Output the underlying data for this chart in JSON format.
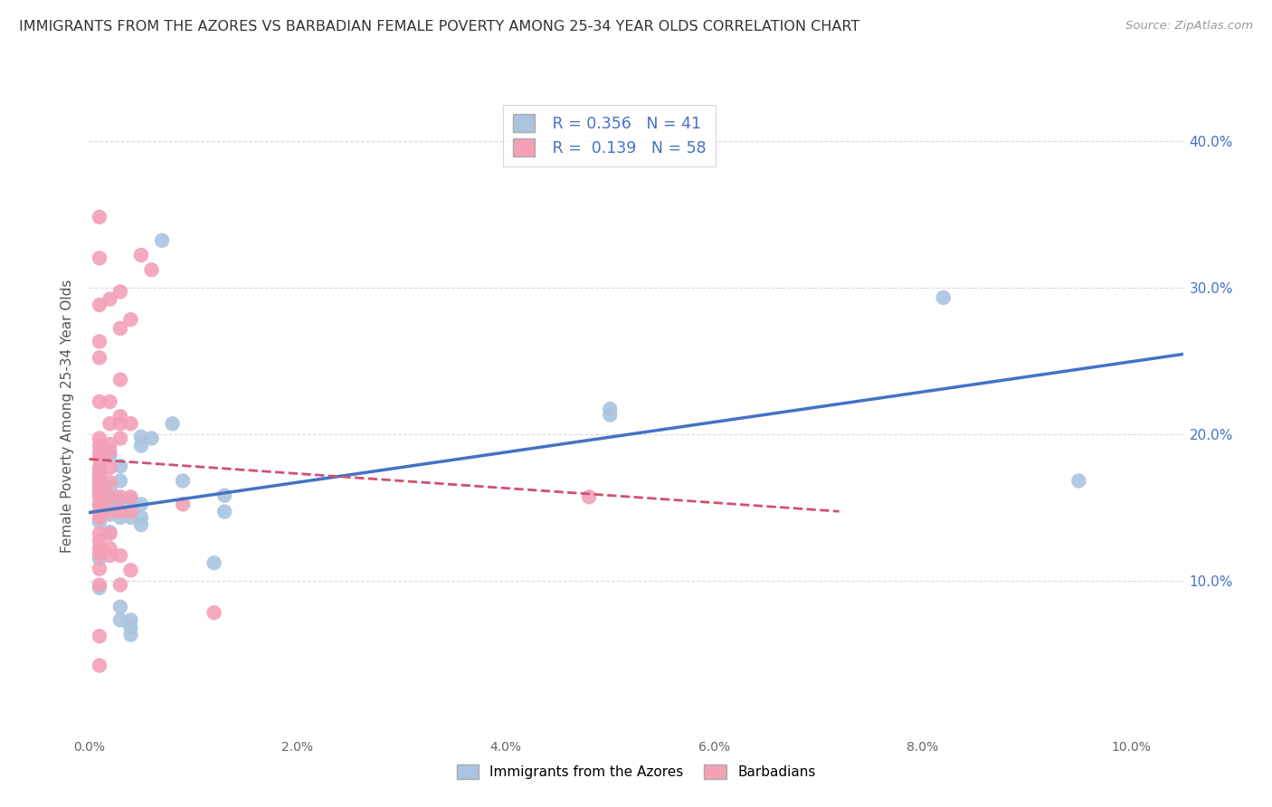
{
  "title": "IMMIGRANTS FROM THE AZORES VS BARBADIAN FEMALE POVERTY AMONG 25-34 YEAR OLDS CORRELATION CHART",
  "source": "Source: ZipAtlas.com",
  "ylabel": "Female Poverty Among 25-34 Year Olds",
  "xlim": [
    0.0,
    0.105
  ],
  "ylim": [
    -0.005,
    0.43
  ],
  "y_ticks": [
    0.1,
    0.2,
    0.3,
    0.4
  ],
  "y_tick_labels_right": [
    "10.0%",
    "20.0%",
    "30.0%",
    "40.0%"
  ],
  "x_tick_positions": [
    0.0,
    0.02,
    0.04,
    0.06,
    0.08,
    0.1
  ],
  "x_tick_labels": [
    "0.0%",
    "2.0%",
    "4.0%",
    "6.0%",
    "8.0%",
    "10.0%"
  ],
  "legend_labels": [
    "Immigrants from the Azores",
    "Barbadians"
  ],
  "R_azores": "0.356",
  "N_azores": "41",
  "R_barbadian": "0.139",
  "N_barbadian": "58",
  "azores_color": "#aac4e0",
  "barbadian_color": "#f4a0b5",
  "azores_line_color": "#4472c4",
  "barbadian_line_color": "#d05070",
  "background_color": "#ffffff",
  "grid_color": "#d8d8e0",
  "azores_scatter": [
    [
      0.001,
      0.115
    ],
    [
      0.001,
      0.095
    ],
    [
      0.001,
      0.175
    ],
    [
      0.001,
      0.16
    ],
    [
      0.001,
      0.14
    ],
    [
      0.001,
      0.165
    ],
    [
      0.001,
      0.152
    ],
    [
      0.001,
      0.17
    ],
    [
      0.002,
      0.185
    ],
    [
      0.002,
      0.155
    ],
    [
      0.002,
      0.163
    ],
    [
      0.002,
      0.145
    ],
    [
      0.002,
      0.133
    ],
    [
      0.002,
      0.152
    ],
    [
      0.003,
      0.168
    ],
    [
      0.003,
      0.178
    ],
    [
      0.003,
      0.155
    ],
    [
      0.003,
      0.143
    ],
    [
      0.003,
      0.082
    ],
    [
      0.003,
      0.073
    ],
    [
      0.004,
      0.155
    ],
    [
      0.004,
      0.143
    ],
    [
      0.004,
      0.073
    ],
    [
      0.004,
      0.068
    ],
    [
      0.004,
      0.063
    ],
    [
      0.005,
      0.198
    ],
    [
      0.005,
      0.192
    ],
    [
      0.005,
      0.152
    ],
    [
      0.005,
      0.143
    ],
    [
      0.005,
      0.138
    ],
    [
      0.006,
      0.197
    ],
    [
      0.007,
      0.332
    ],
    [
      0.008,
      0.207
    ],
    [
      0.009,
      0.168
    ],
    [
      0.012,
      0.112
    ],
    [
      0.013,
      0.158
    ],
    [
      0.013,
      0.147
    ],
    [
      0.05,
      0.217
    ],
    [
      0.05,
      0.213
    ],
    [
      0.082,
      0.293
    ],
    [
      0.095,
      0.168
    ]
  ],
  "barbadian_scatter": [
    [
      0.001,
      0.348
    ],
    [
      0.001,
      0.32
    ],
    [
      0.001,
      0.288
    ],
    [
      0.001,
      0.263
    ],
    [
      0.001,
      0.252
    ],
    [
      0.001,
      0.222
    ],
    [
      0.001,
      0.197
    ],
    [
      0.001,
      0.192
    ],
    [
      0.001,
      0.187
    ],
    [
      0.001,
      0.183
    ],
    [
      0.001,
      0.177
    ],
    [
      0.001,
      0.172
    ],
    [
      0.001,
      0.167
    ],
    [
      0.001,
      0.162
    ],
    [
      0.001,
      0.157
    ],
    [
      0.001,
      0.152
    ],
    [
      0.001,
      0.147
    ],
    [
      0.001,
      0.143
    ],
    [
      0.001,
      0.132
    ],
    [
      0.001,
      0.127
    ],
    [
      0.001,
      0.122
    ],
    [
      0.001,
      0.118
    ],
    [
      0.001,
      0.108
    ],
    [
      0.001,
      0.097
    ],
    [
      0.001,
      0.062
    ],
    [
      0.001,
      0.042
    ],
    [
      0.002,
      0.292
    ],
    [
      0.002,
      0.222
    ],
    [
      0.002,
      0.207
    ],
    [
      0.002,
      0.193
    ],
    [
      0.002,
      0.188
    ],
    [
      0.002,
      0.177
    ],
    [
      0.002,
      0.167
    ],
    [
      0.002,
      0.157
    ],
    [
      0.002,
      0.147
    ],
    [
      0.002,
      0.132
    ],
    [
      0.002,
      0.122
    ],
    [
      0.002,
      0.117
    ],
    [
      0.003,
      0.297
    ],
    [
      0.003,
      0.272
    ],
    [
      0.003,
      0.237
    ],
    [
      0.003,
      0.212
    ],
    [
      0.003,
      0.207
    ],
    [
      0.003,
      0.197
    ],
    [
      0.003,
      0.157
    ],
    [
      0.003,
      0.147
    ],
    [
      0.003,
      0.117
    ],
    [
      0.003,
      0.097
    ],
    [
      0.004,
      0.278
    ],
    [
      0.004,
      0.207
    ],
    [
      0.004,
      0.157
    ],
    [
      0.004,
      0.147
    ],
    [
      0.004,
      0.107
    ],
    [
      0.005,
      0.322
    ],
    [
      0.006,
      0.312
    ],
    [
      0.009,
      0.152
    ],
    [
      0.012,
      0.078
    ],
    [
      0.048,
      0.157
    ]
  ]
}
